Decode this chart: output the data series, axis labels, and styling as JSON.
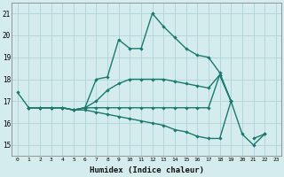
{
  "xlabel": "Humidex (Indice chaleur)",
  "x": [
    0,
    1,
    2,
    3,
    4,
    5,
    6,
    7,
    8,
    9,
    10,
    11,
    12,
    13,
    14,
    15,
    16,
    17,
    18,
    19,
    20,
    21,
    22,
    23
  ],
  "line1": [
    17.4,
    16.7,
    16.7,
    16.7,
    16.7,
    16.6,
    16.7,
    18.0,
    18.1,
    19.8,
    19.4,
    19.4,
    21.0,
    20.4,
    19.9,
    19.4,
    19.1,
    19.0,
    18.3,
    17.0,
    null,
    null,
    null,
    null
  ],
  "line2": [
    null,
    16.7,
    16.7,
    16.7,
    16.7,
    16.6,
    16.7,
    17.0,
    17.5,
    17.8,
    18.0,
    18.0,
    18.0,
    18.0,
    17.9,
    17.8,
    17.7,
    17.6,
    18.2,
    17.0,
    null,
    null,
    null,
    null
  ],
  "line3": [
    null,
    16.7,
    16.7,
    16.7,
    16.7,
    16.6,
    16.6,
    16.5,
    16.4,
    16.3,
    16.2,
    16.1,
    16.0,
    15.9,
    15.7,
    15.6,
    15.4,
    15.3,
    15.3,
    17.0,
    15.5,
    15.0,
    15.5,
    null
  ],
  "line4": [
    null,
    16.7,
    16.7,
    16.7,
    16.7,
    16.6,
    16.7,
    16.7,
    16.7,
    16.7,
    16.7,
    16.7,
    16.7,
    16.7,
    16.7,
    16.7,
    16.7,
    16.7,
    18.2,
    17.0,
    null,
    15.3,
    15.5,
    null
  ],
  "line_color": "#1a7a6e",
  "bg_color": "#d4ecee",
  "grid_color": "#afd4d8",
  "ylim": [
    14.5,
    21.5
  ],
  "yticks": [
    15,
    16,
    17,
    18,
    19,
    20,
    21
  ],
  "xticks": [
    0,
    1,
    2,
    3,
    4,
    5,
    6,
    7,
    8,
    9,
    10,
    11,
    12,
    13,
    14,
    15,
    16,
    17,
    18,
    19,
    20,
    21,
    22,
    23
  ],
  "marker": "D",
  "markersize": 2.2,
  "linewidth": 1.0
}
